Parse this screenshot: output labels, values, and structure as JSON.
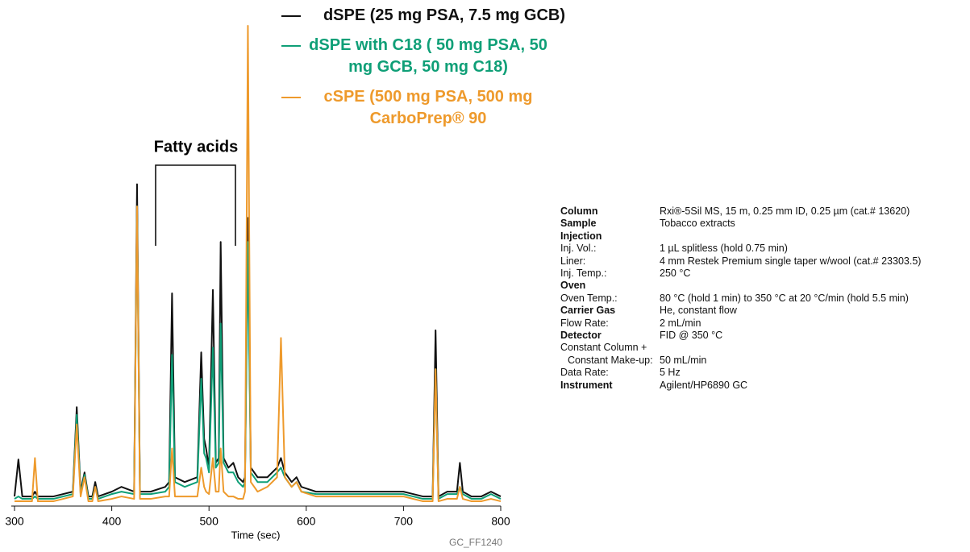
{
  "chart_data": {
    "type": "line",
    "annotation": "Fatty acids",
    "xlabel": "Time (sec)",
    "xlim": [
      300,
      800
    ],
    "xticks": [
      300,
      400,
      500,
      600,
      700,
      800
    ],
    "ylim": [
      0,
      100
    ],
    "x": [
      300,
      304,
      308,
      318,
      321,
      324,
      340,
      360,
      364,
      368,
      372,
      376,
      380,
      383,
      386,
      400,
      410,
      423,
      426,
      429,
      440,
      455,
      459,
      462,
      465,
      475,
      488,
      492,
      495,
      497,
      500,
      504,
      507,
      510,
      512,
      515,
      520,
      525,
      530,
      535,
      537,
      540,
      543,
      550,
      560,
      570,
      574,
      578,
      585,
      590,
      595,
      610,
      630,
      650,
      680,
      700,
      720,
      730,
      733,
      736,
      745,
      755,
      758,
      761,
      770,
      780,
      790,
      800
    ],
    "series": [
      {
        "name": "dSPE (25 mg PSA, 7.5 mg GCB)",
        "color": "#111111",
        "values": [
          2,
          9.7,
          2,
          2,
          3,
          2,
          2,
          3,
          20.6,
          3,
          7,
          2,
          2,
          5,
          2,
          3,
          4,
          3,
          67,
          3,
          3,
          4,
          5,
          44.3,
          6,
          5,
          6,
          32,
          14,
          12,
          8,
          45,
          9,
          10,
          55,
          10,
          8,
          9,
          6,
          5,
          6,
          60,
          8,
          6,
          6,
          8,
          10,
          7,
          5,
          6,
          4,
          3,
          3,
          3,
          3,
          3,
          2,
          2,
          36.6,
          2,
          3,
          3,
          9,
          3,
          2,
          2,
          3,
          2
        ]
      },
      {
        "name": "dSPE with C18 ( 50 mg PSA, 50 mg GCB, 50 mg C18)",
        "color": "#0f9f77",
        "values": [
          1.5,
          2,
          1.5,
          1.5,
          2,
          1.5,
          1.5,
          2.5,
          19,
          2.5,
          6.5,
          1.5,
          1.5,
          4,
          1.5,
          2.5,
          3,
          2.5,
          62.4,
          2.5,
          2.5,
          3,
          4,
          31.5,
          5,
          4,
          5,
          26.5,
          11,
          10,
          7,
          33,
          8,
          9,
          38,
          9,
          7,
          7,
          5,
          4,
          5,
          55,
          7,
          5,
          5,
          7,
          8,
          6,
          4,
          5,
          3,
          2.5,
          2.5,
          2.5,
          2.5,
          2.5,
          1.5,
          1.5,
          28.5,
          1.5,
          2.5,
          2.5,
          4,
          2.5,
          1.5,
          1.5,
          2.5,
          1.5
        ]
      },
      {
        "name": "cSPE (500 mg PSA, 500 mg CarboPrep® 90",
        "color": "#ee9a2c",
        "values": [
          1,
          1,
          1,
          1,
          10,
          1,
          1,
          2,
          17,
          2,
          6,
          1,
          1,
          4,
          1,
          1.5,
          2,
          1.5,
          62.4,
          1.5,
          1.5,
          2,
          2,
          12,
          2,
          2,
          2,
          8,
          4,
          3,
          2.5,
          10,
          3,
          3,
          12,
          3,
          2,
          2,
          1.5,
          1.5,
          3,
          100,
          5,
          3,
          4,
          6,
          35,
          6,
          4,
          5,
          3,
          2,
          2,
          2,
          2,
          2,
          1,
          1,
          28.5,
          1,
          1.5,
          1.5,
          4,
          1.5,
          1,
          1,
          1.5,
          1
        ]
      }
    ]
  },
  "figure_id": "GC_FF1240",
  "conditions": [
    {
      "label": "Column",
      "value": "Rxi®-5Sil MS, 15 m, 0.25 mm ID, 0.25 µm (cat.# 13620)",
      "style": "heading"
    },
    {
      "label": "Sample",
      "value": "Tobacco extracts",
      "style": "heading"
    },
    {
      "label": "Injection",
      "style": "heading"
    },
    {
      "label": "Inj. Vol.:",
      "value": "1 µL splitless (hold 0.75 min)"
    },
    {
      "label": "Liner:",
      "value": "4 mm Restek Premium single taper w/wool (cat.# 23303.5)"
    },
    {
      "label": "Inj. Temp.:",
      "value": "250 °C"
    },
    {
      "label": "Oven",
      "style": "heading"
    },
    {
      "label": "Oven Temp.:",
      "value": "80 °C (hold 1 min) to 350 °C at 20 °C/min (hold 5.5 min)"
    },
    {
      "label": "Carrier Gas",
      "value": "He, constant flow",
      "style": "heading"
    },
    {
      "label": "Flow Rate:",
      "value": "2 mL/min"
    },
    {
      "label": "Detector",
      "value": "FID @ 350 °C",
      "style": "heading"
    },
    {
      "label": "Constant Column +"
    },
    {
      "label": "Constant Make-up:",
      "value": "50 mL/min",
      "style": "indent"
    },
    {
      "label": "Data Rate:",
      "value": "5 Hz"
    },
    {
      "label": "Instrument",
      "value": "Agilent/HP6890 GC",
      "style": "heading"
    }
  ]
}
